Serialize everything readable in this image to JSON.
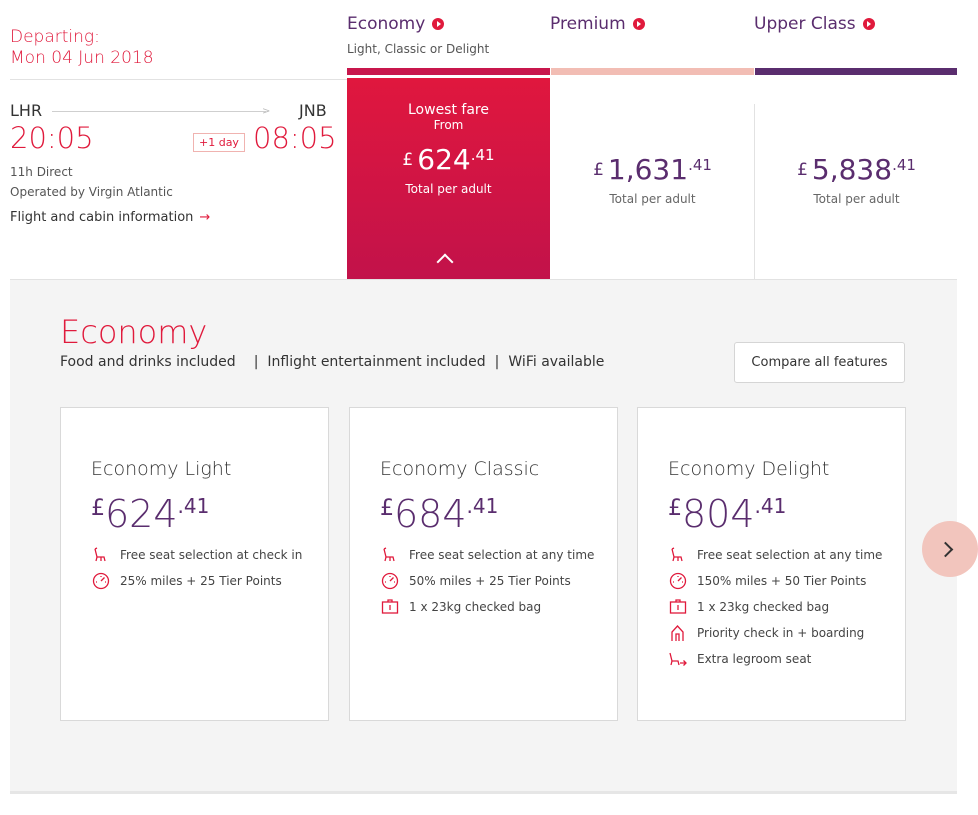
{
  "header": {
    "departing_label": "Departing:",
    "departing_date": "Mon 04 Jun 2018"
  },
  "cabins": [
    {
      "title": "Economy",
      "subtitle": "Light, Classic or Delight",
      "bar_color": "#c8174c"
    },
    {
      "title": "Premium",
      "subtitle": "",
      "bar_color": "#f2bdb4"
    },
    {
      "title": "Upper Class",
      "subtitle": "",
      "bar_color": "#5a2d6e"
    }
  ],
  "flight": {
    "origin": "LHR",
    "destination": "JNB",
    "depart_time": "20:05",
    "arrive_time": "08:05",
    "plus_day": "+1 day",
    "duration": "11h Direct",
    "operator": "Operated by Virgin Atlantic",
    "info_link": "Flight and cabin information"
  },
  "fares": {
    "economy": {
      "lowest_label": "Lowest fare",
      "from_label": "From",
      "currency": "£",
      "main": "624",
      "decimals": ".41",
      "total_label": "Total per adult"
    },
    "premium": {
      "currency": "£",
      "main": "1,631",
      "decimals": ".41",
      "total_label": "Total per adult"
    },
    "upper": {
      "currency": "£",
      "main": "5,838",
      "decimals": ".41",
      "total_label": "Total per adult"
    }
  },
  "detail": {
    "title": "Economy",
    "features": [
      "Food and drinks included",
      "Inflight entertainment included",
      "WiFi available"
    ],
    "compare_button": "Compare all features",
    "cards": [
      {
        "name": "Economy Light",
        "currency": "£",
        "main": "624",
        "decimals": ".41",
        "items": [
          {
            "icon": "seat-icon",
            "text": "Free seat selection at check in"
          },
          {
            "icon": "miles-gauge-icon",
            "text": "25% miles + 25 Tier Points"
          }
        ]
      },
      {
        "name": "Economy Classic",
        "currency": "£",
        "main": "684",
        "decimals": ".41",
        "items": [
          {
            "icon": "seat-icon",
            "text": "Free seat selection at any time"
          },
          {
            "icon": "miles-gauge-icon",
            "text": "50% miles + 25 Tier Points"
          },
          {
            "icon": "bag-icon",
            "text": "1 x 23kg checked bag"
          }
        ]
      },
      {
        "name": "Economy Delight",
        "currency": "£",
        "main": "804",
        "decimals": ".41",
        "items": [
          {
            "icon": "seat-icon",
            "text": "Free seat selection at any time"
          },
          {
            "icon": "miles-gauge-icon",
            "text": "150% miles + 50 Tier Points"
          },
          {
            "icon": "bag-icon",
            "text": "1 x 23kg checked bag"
          },
          {
            "icon": "priority-icon",
            "text": "Priority check in + boarding"
          },
          {
            "icon": "legroom-seat-icon",
            "text": "Extra legroom seat"
          }
        ]
      }
    ]
  },
  "colors": {
    "brand_red": "#e01a3c",
    "brand_purple": "#5a2d6e",
    "panel_bg": "#f4f4f4"
  }
}
